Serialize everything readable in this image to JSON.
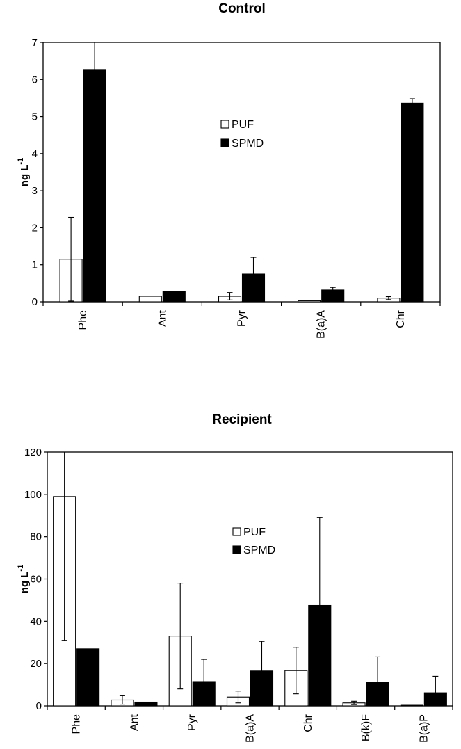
{
  "chart_data": [
    {
      "type": "bar",
      "title": "Control",
      "ylabel": "ng L",
      "ylabel_superscript": "-1",
      "ylim": [
        0,
        7
      ],
      "yticks": [
        0,
        1,
        2,
        3,
        4,
        5,
        6,
        7
      ],
      "categories": [
        "Phe",
        "Ant",
        "Pyr",
        "B(a)A",
        "Chr"
      ],
      "series": [
        {
          "name": "PUF",
          "color": "#ffffff",
          "values": [
            1.15,
            0.15,
            0.15,
            0.03,
            0.1
          ],
          "errors": [
            1.13,
            0.0,
            0.1,
            0.0,
            0.04
          ]
        },
        {
          "name": "SPMD",
          "color": "#000000",
          "values": [
            6.27,
            0.29,
            0.75,
            0.32,
            5.36
          ],
          "errors": [
            0.75,
            0.0,
            0.45,
            0.07,
            0.12
          ]
        }
      ],
      "legend_position": "center"
    },
    {
      "type": "bar",
      "title": "Recipient",
      "ylabel": "ng L",
      "ylabel_superscript": "-1",
      "ylim": [
        0,
        120
      ],
      "yticks": [
        0,
        20,
        40,
        60,
        80,
        100,
        120
      ],
      "categories": [
        "Phe",
        "Ant",
        "Pyr",
        "B(a)A",
        "Chr",
        "B(k)F",
        "B(a)P"
      ],
      "series": [
        {
          "name": "PUF",
          "color": "#ffffff",
          "values": [
            99,
            2.8,
            33,
            4.2,
            16.7,
            1.4,
            0.3
          ],
          "errors": [
            68,
            2.0,
            25,
            2.8,
            11,
            0.8,
            0
          ]
        },
        {
          "name": "SPMD",
          "color": "#000000",
          "values": [
            27,
            1.8,
            11.5,
            16.5,
            47.5,
            11.2,
            6.2
          ],
          "errors": [
            0,
            0,
            10.5,
            14,
            41.5,
            12,
            7.8
          ]
        }
      ],
      "legend_position": "center"
    }
  ]
}
